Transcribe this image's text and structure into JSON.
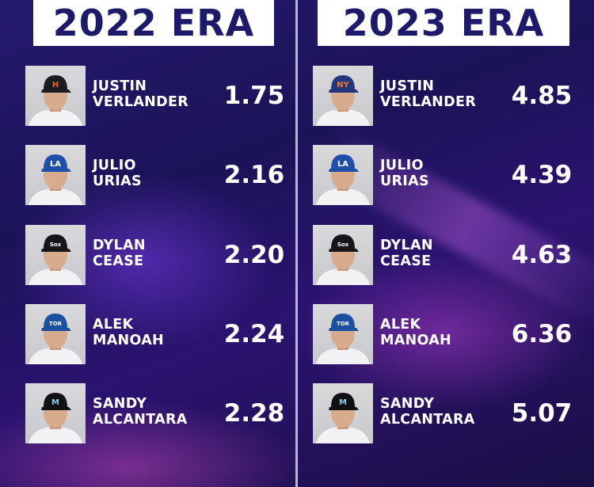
{
  "left": {
    "title": "2022 ERA",
    "players": [
      {
        "first": "JUSTIN",
        "last": "VERLANDER",
        "era": "1.75",
        "cap": "#1b1b22",
        "logo": "H",
        "logo_color": "#e86a1f"
      },
      {
        "first": "JULIO",
        "last": "URIAS",
        "era": "2.16",
        "cap": "#1f4fa8",
        "logo": "LA",
        "logo_color": "#ffffff"
      },
      {
        "first": "DYLAN",
        "last": "CEASE",
        "era": "2.20",
        "cap": "#15151a",
        "logo": "Sox",
        "logo_color": "#ffffff"
      },
      {
        "first": "ALEK",
        "last": "MANOAH",
        "era": "2.24",
        "cap": "#1d4fa0",
        "logo": "TOR",
        "logo_color": "#ffffff"
      },
      {
        "first": "SANDY",
        "last": "ALCANTARA",
        "era": "2.28",
        "cap": "#111114",
        "logo": "M",
        "logo_color": "#7fd0e6"
      }
    ]
  },
  "right": {
    "title": "2023 ERA",
    "players": [
      {
        "first": "JUSTIN",
        "last": "VERLANDER",
        "era": "4.85",
        "cap": "#23357d",
        "logo": "NY",
        "logo_color": "#f07a2a"
      },
      {
        "first": "JULIO",
        "last": "URIAS",
        "era": "4.39",
        "cap": "#1f4fa8",
        "logo": "LA",
        "logo_color": "#ffffff"
      },
      {
        "first": "DYLAN",
        "last": "CEASE",
        "era": "4.63",
        "cap": "#15151a",
        "logo": "Sox",
        "logo_color": "#ffffff"
      },
      {
        "first": "ALEK",
        "last": "MANOAH",
        "era": "6.36",
        "cap": "#1d4fa0",
        "logo": "TOR",
        "logo_color": "#ffffff"
      },
      {
        "first": "SANDY",
        "last": "ALCANTARA",
        "era": "5.07",
        "cap": "#111114",
        "logo": "M",
        "logo_color": "#7fd0e6"
      }
    ]
  }
}
